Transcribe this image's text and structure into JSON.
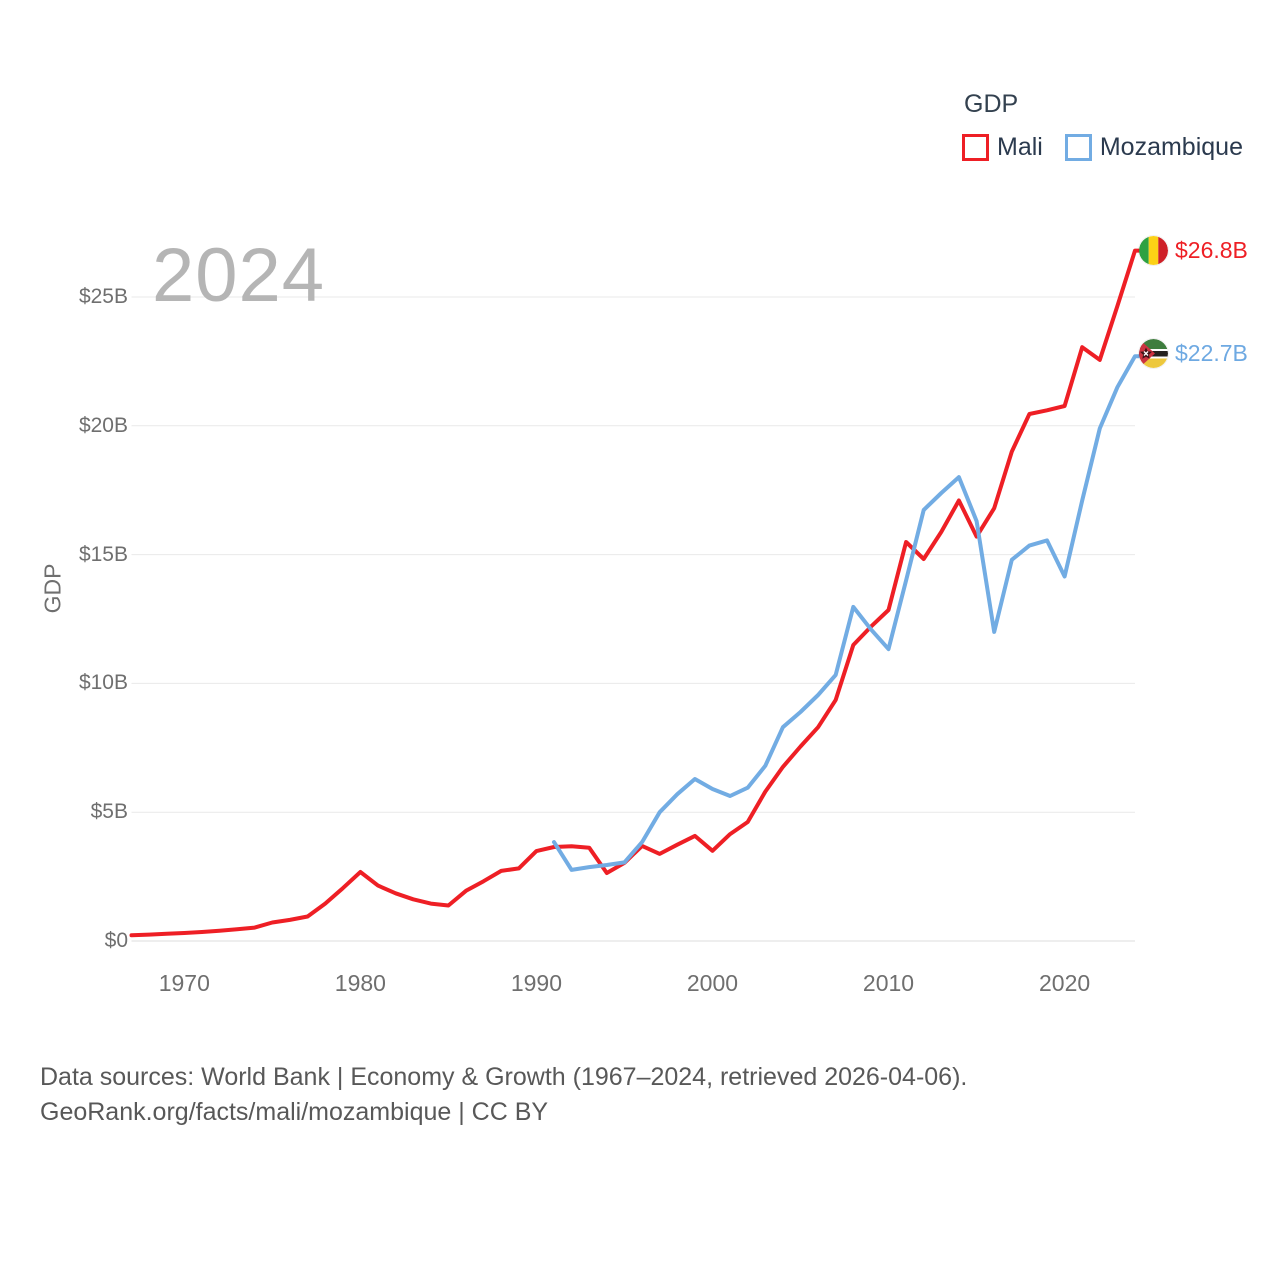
{
  "watermark": "2024",
  "legend": {
    "title": "GDP",
    "items": [
      {
        "label": "Mali",
        "color": "#ee1f25"
      },
      {
        "label": "Mozambique",
        "color": "#72ace3"
      }
    ]
  },
  "y_axis": {
    "title": "GDP",
    "ticks": [
      "$0",
      "$5B",
      "$10B",
      "$15B",
      "$20B",
      "$25B"
    ],
    "tick_values": [
      0,
      5,
      10,
      15,
      20,
      25
    ]
  },
  "x_axis": {
    "ticks": [
      1970,
      1980,
      1990,
      2000,
      2010,
      2020
    ]
  },
  "end_labels": [
    {
      "series": "Mali",
      "value": "$26.8B",
      "color": "#ee1f25",
      "flag": "mali-flag"
    },
    {
      "series": "Mozambique",
      "value": "$22.7B",
      "color": "#6ea9e2",
      "flag": "mozambique-flag"
    }
  ],
  "footer": {
    "line1": "Data sources: World Bank | Economy & Growth (1967–2024, retrieved 2026-04-06).",
    "line2": "GeoRank.org/facts/mali/mozambique | CC BY"
  },
  "chart_data": {
    "type": "line",
    "title": "GDP",
    "ylabel": "GDP",
    "unit": "billion USD",
    "x_range": [
      1967,
      2024
    ],
    "x_step": 1,
    "ylim": [
      0,
      27
    ],
    "grid": "horizontal-only",
    "legend_position": "top-right",
    "series": [
      {
        "name": "Mali",
        "color": "#ee1f25",
        "start_year": 1967,
        "end_value_label": "$26.8B",
        "values": [
          0.22,
          0.25,
          0.28,
          0.31,
          0.35,
          0.4,
          0.46,
          0.52,
          0.72,
          0.82,
          0.95,
          1.45,
          2.05,
          2.68,
          2.15,
          1.85,
          1.62,
          1.45,
          1.38,
          1.95,
          2.32,
          2.72,
          2.82,
          3.49,
          3.65,
          3.68,
          3.62,
          2.64,
          3.03,
          3.69,
          3.38,
          3.74,
          4.08,
          3.5,
          4.15,
          4.62,
          5.8,
          6.76,
          7.55,
          8.3,
          9.36,
          11.49,
          12.2,
          12.85,
          15.49,
          14.83,
          15.88,
          17.1,
          15.7,
          16.8,
          19.0,
          20.46,
          20.6,
          20.77,
          23.05,
          22.56,
          24.65,
          26.8
        ]
      },
      {
        "name": "Mozambique",
        "color": "#72ace3",
        "start_year": 1991,
        "end_value_label": "$22.7B",
        "values": [
          3.84,
          2.76,
          2.87,
          2.95,
          3.05,
          3.84,
          5.0,
          5.7,
          6.29,
          5.9,
          5.63,
          5.95,
          6.8,
          8.3,
          8.89,
          9.55,
          10.33,
          12.97,
          12.1,
          11.33,
          14.0,
          16.73,
          17.39,
          18.01,
          16.3,
          12.0,
          14.8,
          15.35,
          15.55,
          14.15,
          17.1,
          19.9,
          21.5,
          22.7
        ]
      }
    ]
  }
}
